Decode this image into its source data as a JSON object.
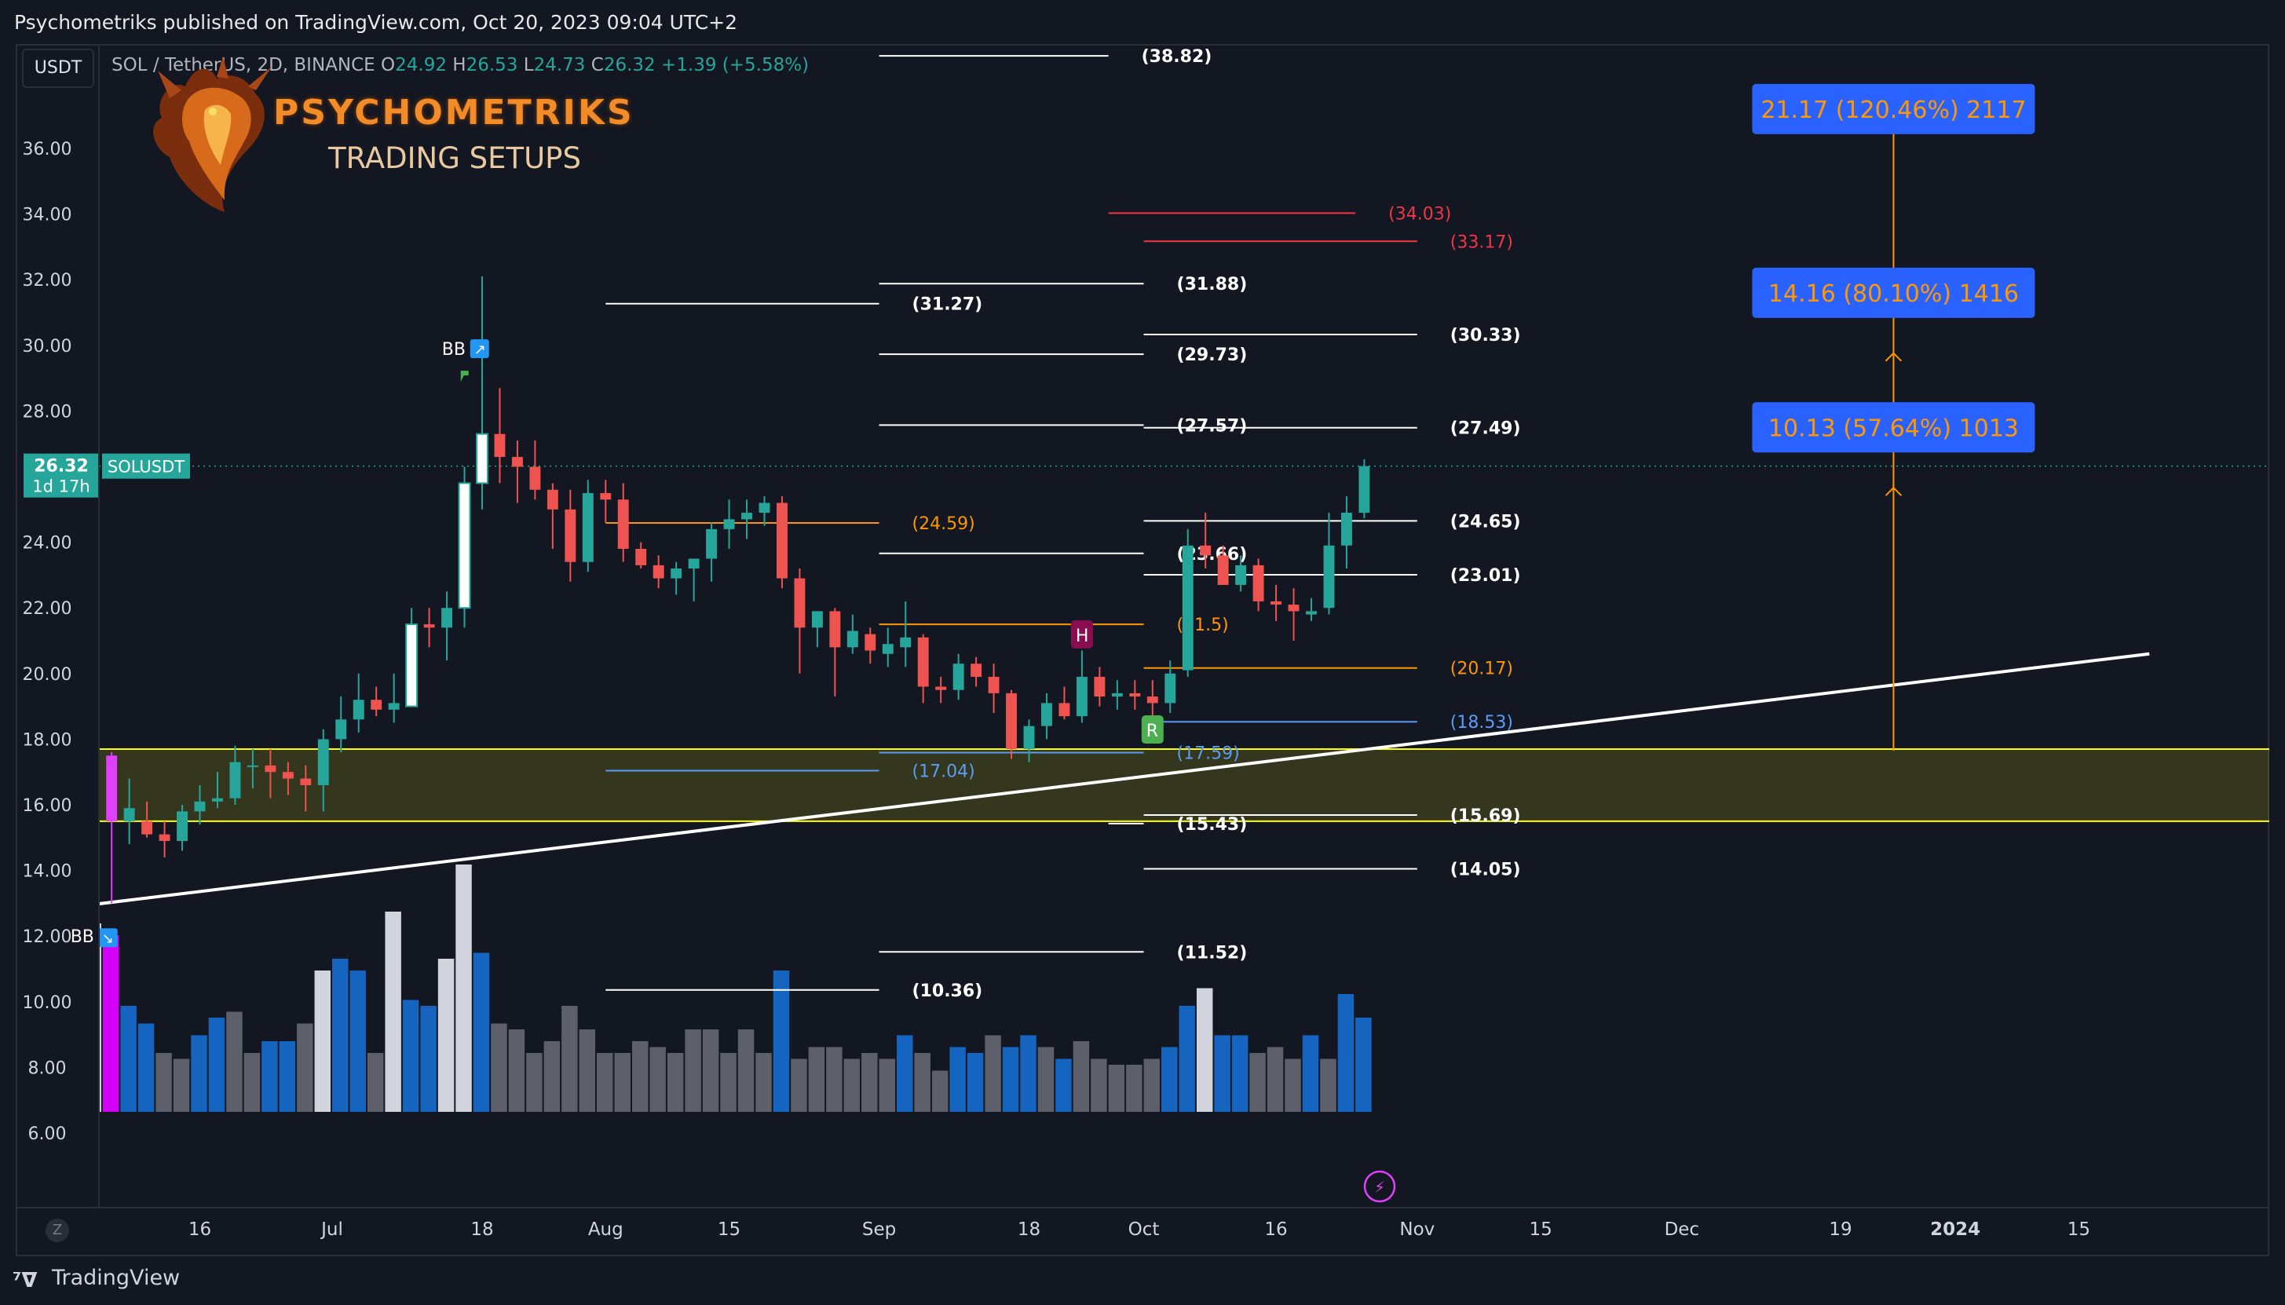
{
  "header": {
    "published_text": "Psychometriks published on TradingView.com, Oct 20, 2023 09:04 UTC+2"
  },
  "footer": {
    "brand": "TradingView",
    "brand_icon": "tradingview-logo-icon",
    "z_button": "Z"
  },
  "toolbar": {
    "currency_button": "USDT"
  },
  "legend": {
    "symbol": "SOL / TetherUS, 2D, BINANCE",
    "open_label": "O",
    "open": "24.92",
    "high_label": "H",
    "high": "26.53",
    "low_label": "L",
    "low": "24.73",
    "close_label": "C",
    "close": "26.32",
    "change": "+1.39 (+5.58%)"
  },
  "branding": {
    "title": "PSYCHOMETRIKS",
    "subtitle": "TRADING SETUPS",
    "logo_icon": "dragon-logo-icon"
  },
  "price_tag": {
    "price": "26.32",
    "countdown": "1d 17h",
    "symbol": "SOLUSDT"
  },
  "colors": {
    "background": "#131722",
    "up": "#26a69a",
    "down": "#ef5350",
    "zone": "#ffff00",
    "target": "#2962ff",
    "target_text": "#ff9800",
    "volume_up": "#1565c0",
    "volume_down": "#5d606b",
    "volume_high": "#d1d4dc"
  },
  "chart_data": {
    "type": "candlestick",
    "timeframe": "2D",
    "ylim": [
      6,
      38.5
    ],
    "yticks": [
      "36.00",
      "34.00",
      "32.00",
      "30.00",
      "28.00",
      "26.00",
      "24.00",
      "22.00",
      "20.00",
      "18.00",
      "16.00",
      "14.00",
      "12.00",
      "10.00",
      "8.00",
      "6.00"
    ],
    "xticks": [
      "16",
      "Jul",
      "18",
      "Aug",
      "15",
      "Sep",
      "18",
      "Oct",
      "16",
      "Nov",
      "15",
      "Dec",
      "19",
      "2024",
      "15"
    ],
    "candles": [
      {
        "d": "2023-06-04",
        "o": 19.3,
        "h": 19.8,
        "l": 13.0,
        "c": 17.5
      },
      {
        "d": "2023-06-06",
        "o": 17.5,
        "h": 17.6,
        "l": 13.0,
        "c": 15.5
      },
      {
        "d": "2023-06-08",
        "o": 15.5,
        "h": 16.8,
        "l": 14.8,
        "c": 15.9
      },
      {
        "d": "2023-06-10",
        "o": 15.5,
        "h": 16.1,
        "l": 15.0,
        "c": 15.1
      },
      {
        "d": "2023-06-12",
        "o": 15.1,
        "h": 15.5,
        "l": 14.4,
        "c": 14.9
      },
      {
        "d": "2023-06-14",
        "o": 14.9,
        "h": 16.0,
        "l": 14.6,
        "c": 15.8
      },
      {
        "d": "2023-06-16",
        "o": 15.8,
        "h": 16.6,
        "l": 15.4,
        "c": 16.1
      },
      {
        "d": "2023-06-18",
        "o": 16.1,
        "h": 17.0,
        "l": 15.9,
        "c": 16.2
      },
      {
        "d": "2023-06-20",
        "o": 16.2,
        "h": 17.8,
        "l": 16.0,
        "c": 17.3
      },
      {
        "d": "2023-06-22",
        "o": 17.2,
        "h": 17.7,
        "l": 16.5,
        "c": 17.2
      },
      {
        "d": "2023-06-24",
        "o": 17.2,
        "h": 17.7,
        "l": 16.2,
        "c": 17.0
      },
      {
        "d": "2023-06-26",
        "o": 17.0,
        "h": 17.3,
        "l": 16.3,
        "c": 16.8
      },
      {
        "d": "2023-06-28",
        "o": 16.8,
        "h": 17.2,
        "l": 15.8,
        "c": 16.6
      },
      {
        "d": "2023-06-30",
        "o": 16.6,
        "h": 18.3,
        "l": 15.8,
        "c": 18.0
      },
      {
        "d": "2023-07-02",
        "o": 18.0,
        "h": 19.3,
        "l": 17.6,
        "c": 18.6
      },
      {
        "d": "2023-07-04",
        "o": 18.6,
        "h": 20.0,
        "l": 18.2,
        "c": 19.2
      },
      {
        "d": "2023-07-06",
        "o": 19.2,
        "h": 19.6,
        "l": 18.7,
        "c": 18.9
      },
      {
        "d": "2023-07-08",
        "o": 18.9,
        "h": 20.0,
        "l": 18.5,
        "c": 19.1
      },
      {
        "d": "2023-07-10",
        "o": 19.0,
        "h": 22.0,
        "l": 19.0,
        "c": 21.5
      },
      {
        "d": "2023-07-12",
        "o": 21.5,
        "h": 22.0,
        "l": 20.8,
        "c": 21.4
      },
      {
        "d": "2023-07-14",
        "o": 21.4,
        "h": 22.5,
        "l": 20.4,
        "c": 22.0
      },
      {
        "d": "2023-07-16",
        "o": 22.0,
        "h": 26.3,
        "l": 21.4,
        "c": 25.8
      },
      {
        "d": "2023-07-18",
        "o": 25.8,
        "h": 32.1,
        "l": 25.0,
        "c": 27.3
      },
      {
        "d": "2023-07-20",
        "o": 27.3,
        "h": 28.7,
        "l": 25.8,
        "c": 26.6
      },
      {
        "d": "2023-07-22",
        "o": 26.6,
        "h": 27.1,
        "l": 25.2,
        "c": 26.3
      },
      {
        "d": "2023-07-24",
        "o": 26.3,
        "h": 27.1,
        "l": 25.3,
        "c": 25.6
      },
      {
        "d": "2023-07-26",
        "o": 25.6,
        "h": 25.8,
        "l": 23.8,
        "c": 25.0
      },
      {
        "d": "2023-07-28",
        "o": 25.0,
        "h": 25.6,
        "l": 22.8,
        "c": 23.4
      },
      {
        "d": "2023-07-30",
        "o": 23.4,
        "h": 25.9,
        "l": 23.1,
        "c": 25.5
      },
      {
        "d": "2023-08-01",
        "o": 25.5,
        "h": 25.9,
        "l": 24.6,
        "c": 25.3
      },
      {
        "d": "2023-08-03",
        "o": 25.3,
        "h": 25.8,
        "l": 23.4,
        "c": 23.8
      },
      {
        "d": "2023-08-05",
        "o": 23.8,
        "h": 24.0,
        "l": 23.2,
        "c": 23.3
      },
      {
        "d": "2023-08-07",
        "o": 23.3,
        "h": 23.6,
        "l": 22.6,
        "c": 22.9
      },
      {
        "d": "2023-08-09",
        "o": 22.9,
        "h": 23.4,
        "l": 22.4,
        "c": 23.2
      },
      {
        "d": "2023-08-11",
        "o": 23.2,
        "h": 23.5,
        "l": 22.2,
        "c": 23.5
      },
      {
        "d": "2023-08-13",
        "o": 23.5,
        "h": 24.6,
        "l": 22.8,
        "c": 24.4
      },
      {
        "d": "2023-08-15",
        "o": 24.4,
        "h": 25.3,
        "l": 23.8,
        "c": 24.7
      },
      {
        "d": "2023-08-17",
        "o": 24.7,
        "h": 25.3,
        "l": 24.1,
        "c": 24.9
      },
      {
        "d": "2023-08-19",
        "o": 24.9,
        "h": 25.4,
        "l": 24.5,
        "c": 25.2
      },
      {
        "d": "2023-08-21",
        "o": 25.2,
        "h": 25.4,
        "l": 22.6,
        "c": 22.9
      },
      {
        "d": "2023-08-23",
        "o": 22.9,
        "h": 23.2,
        "l": 20.0,
        "c": 21.4
      },
      {
        "d": "2023-08-25",
        "o": 21.4,
        "h": 21.9,
        "l": 20.8,
        "c": 21.9
      },
      {
        "d": "2023-08-27",
        "o": 21.9,
        "h": 22.0,
        "l": 19.3,
        "c": 20.8
      },
      {
        "d": "2023-08-29",
        "o": 20.8,
        "h": 21.8,
        "l": 20.6,
        "c": 21.3
      },
      {
        "d": "2023-08-31",
        "o": 21.2,
        "h": 21.4,
        "l": 20.3,
        "c": 20.7
      },
      {
        "d": "2023-09-02",
        "o": 20.6,
        "h": 21.4,
        "l": 20.2,
        "c": 20.9
      },
      {
        "d": "2023-09-04",
        "o": 20.8,
        "h": 22.2,
        "l": 20.2,
        "c": 21.1
      },
      {
        "d": "2023-09-06",
        "o": 21.1,
        "h": 21.2,
        "l": 19.1,
        "c": 19.6
      },
      {
        "d": "2023-09-08",
        "o": 19.6,
        "h": 19.9,
        "l": 19.1,
        "c": 19.5
      },
      {
        "d": "2023-09-10",
        "o": 19.5,
        "h": 20.6,
        "l": 19.2,
        "c": 20.3
      },
      {
        "d": "2023-09-12",
        "o": 20.3,
        "h": 20.5,
        "l": 19.6,
        "c": 19.9
      },
      {
        "d": "2023-09-14",
        "o": 19.9,
        "h": 20.3,
        "l": 18.8,
        "c": 19.4
      },
      {
        "d": "2023-09-16",
        "o": 19.4,
        "h": 19.5,
        "l": 17.4,
        "c": 17.7
      },
      {
        "d": "2023-09-18",
        "o": 17.7,
        "h": 18.6,
        "l": 17.3,
        "c": 18.4
      },
      {
        "d": "2023-09-20",
        "o": 18.4,
        "h": 19.4,
        "l": 18.0,
        "c": 19.1
      },
      {
        "d": "2023-09-22",
        "o": 19.1,
        "h": 19.6,
        "l": 18.6,
        "c": 18.7
      },
      {
        "d": "2023-09-24",
        "o": 18.7,
        "h": 20.7,
        "l": 18.5,
        "c": 19.9
      },
      {
        "d": "2023-09-26",
        "o": 19.9,
        "h": 20.2,
        "l": 19.0,
        "c": 19.3
      },
      {
        "d": "2023-09-28",
        "o": 19.3,
        "h": 19.8,
        "l": 18.9,
        "c": 19.4
      },
      {
        "d": "2023-09-30",
        "o": 19.4,
        "h": 19.8,
        "l": 18.9,
        "c": 19.3
      },
      {
        "d": "2023-10-02",
        "o": 19.3,
        "h": 19.8,
        "l": 18.7,
        "c": 19.1
      },
      {
        "d": "2023-10-04",
        "o": 19.1,
        "h": 20.4,
        "l": 18.8,
        "c": 20.0
      },
      {
        "d": "2023-10-06",
        "o": 20.1,
        "h": 24.4,
        "l": 19.9,
        "c": 23.9
      },
      {
        "d": "2023-10-08",
        "o": 23.9,
        "h": 24.9,
        "l": 23.2,
        "c": 23.6
      },
      {
        "d": "2023-10-10",
        "o": 23.6,
        "h": 23.9,
        "l": 22.7,
        "c": 22.7
      },
      {
        "d": "2023-10-12",
        "o": 22.7,
        "h": 23.6,
        "l": 22.5,
        "c": 23.3
      },
      {
        "d": "2023-10-14",
        "o": 23.3,
        "h": 23.5,
        "l": 21.9,
        "c": 22.2
      },
      {
        "d": "2023-10-16",
        "o": 22.2,
        "h": 22.7,
        "l": 21.6,
        "c": 22.1
      },
      {
        "d": "2023-10-18",
        "o": 22.1,
        "h": 22.6,
        "l": 21.0,
        "c": 21.9
      },
      {
        "d": "2023-10-20",
        "o": 21.8,
        "h": 22.3,
        "l": 21.6,
        "c": 21.9
      },
      {
        "d": "2023-10-22",
        "o": 22.0,
        "h": 24.9,
        "l": 21.8,
        "c": 23.9
      },
      {
        "d": "2023-10-24",
        "o": 23.9,
        "h": 25.4,
        "l": 23.2,
        "c": 24.9
      },
      {
        "d": "2023-10-26",
        "o": 24.9,
        "h": 26.53,
        "l": 24.73,
        "c": 26.32
      }
    ],
    "volume_levels": [
      3.2,
      3.0,
      1.8,
      1.5,
      1.0,
      0.9,
      1.3,
      1.6,
      1.7,
      1.0,
      1.2,
      1.2,
      1.5,
      2.4,
      2.6,
      2.4,
      1.0,
      3.4,
      1.9,
      1.8,
      2.6,
      4.2,
      2.7,
      1.5,
      1.4,
      1.0,
      1.2,
      1.8,
      1.4,
      1.0,
      1.0,
      1.2,
      1.1,
      1.0,
      1.4,
      1.4,
      1.0,
      1.4,
      1.0,
      2.4,
      0.9,
      1.1,
      1.1,
      0.9,
      1.0,
      0.9,
      1.3,
      1.0,
      0.7,
      1.1,
      1.0,
      1.3,
      1.1,
      1.3,
      1.1,
      0.9,
      1.2,
      0.9,
      0.8,
      0.8,
      0.9,
      1.1,
      1.8,
      2.1,
      1.3,
      1.3,
      1.0,
      1.1,
      0.9,
      1.3,
      0.9,
      2.0,
      1.6,
      0.6
    ],
    "volume_kind": [
      "hi",
      "m",
      "u",
      "u",
      "d",
      "d",
      "u",
      "u",
      "d",
      "d",
      "u",
      "u",
      "d",
      "hi",
      "u",
      "u",
      "d",
      "hi",
      "u",
      "u",
      "hi",
      "hi",
      "u",
      "d",
      "d",
      "d",
      "d",
      "d",
      "d",
      "d",
      "d",
      "d",
      "d",
      "d",
      "d",
      "d",
      "d",
      "d",
      "d",
      "u",
      "d",
      "d",
      "d",
      "d",
      "d",
      "d",
      "u",
      "d",
      "d",
      "u",
      "u",
      "d",
      "u",
      "u",
      "d",
      "u",
      "d",
      "d",
      "d",
      "d",
      "d",
      "u",
      "u",
      "hi",
      "u",
      "u",
      "d",
      "d",
      "d",
      "u",
      "d",
      "u",
      "u",
      "d"
    ],
    "zone": {
      "top": 17.7,
      "bottom": 15.5
    },
    "trendline": {
      "from": {
        "d": "2023-06-02",
        "p": 12.9
      },
      "to": {
        "d": "2024-01-23",
        "p": 20.6
      }
    },
    "fib_levels": [
      {
        "x1": "2023-09-01",
        "x2": "2023-09-27",
        "p": 38.82,
        "label": "(38.82)",
        "color": "white"
      },
      {
        "x1": "2023-09-27",
        "x2": "2023-10-25",
        "p": 34.03,
        "label": "(34.03)",
        "color": "red"
      },
      {
        "x1": "2023-10-01",
        "x2": "2023-11-01",
        "p": 33.17,
        "label": "(33.17)",
        "color": "red"
      },
      {
        "x1": "2023-08-01",
        "x2": "2023-09-01",
        "p": 31.27,
        "label": "(31.27)",
        "color": "white"
      },
      {
        "x1": "2023-09-01",
        "x2": "2023-10-01",
        "p": 31.88,
        "label": "(31.88)",
        "color": "white"
      },
      {
        "x1": "2023-10-01",
        "x2": "2023-11-01",
        "p": 30.33,
        "label": "(30.33)",
        "color": "white"
      },
      {
        "x1": "2023-09-01",
        "x2": "2023-10-01",
        "p": 29.73,
        "label": "(29.73)",
        "color": "white"
      },
      {
        "x1": "2023-09-01",
        "x2": "2023-10-01",
        "p": 27.57,
        "label": "(27.57)",
        "color": "white"
      },
      {
        "x1": "2023-10-01",
        "x2": "2023-11-01",
        "p": 27.49,
        "label": "(27.49)",
        "color": "white"
      },
      {
        "x1": "2023-08-01",
        "x2": "2023-09-01",
        "p": 24.59,
        "label": "(24.59)",
        "color": "orange"
      },
      {
        "x1": "2023-10-01",
        "x2": "2023-11-01",
        "p": 24.65,
        "label": "(24.65)",
        "color": "white"
      },
      {
        "x1": "2023-09-01",
        "x2": "2023-10-01",
        "p": 23.66,
        "label": "(23.66)",
        "color": "white"
      },
      {
        "x1": "2023-10-01",
        "x2": "2023-11-01",
        "p": 23.01,
        "label": "(23.01)",
        "color": "white"
      },
      {
        "x1": "2023-09-01",
        "x2": "2023-10-01",
        "p": 21.5,
        "label": "(21.5)",
        "color": "orange"
      },
      {
        "x1": "2023-10-01",
        "x2": "2023-11-01",
        "p": 20.17,
        "label": "(20.17)",
        "color": "orange"
      },
      {
        "x1": "2023-10-01",
        "x2": "2023-11-01",
        "p": 18.53,
        "label": "(18.53)",
        "color": "blue"
      },
      {
        "x1": "2023-09-01",
        "x2": "2023-10-01",
        "p": 17.59,
        "label": "(17.59)",
        "color": "blue"
      },
      {
        "x1": "2023-08-01",
        "x2": "2023-09-01",
        "p": 17.04,
        "label": "(17.04)",
        "color": "blue"
      },
      {
        "x1": "2023-10-01",
        "x2": "2023-11-01",
        "p": 15.69,
        "label": "(15.69)",
        "color": "white"
      },
      {
        "x1": "2023-09-27",
        "x2": "2023-10-01",
        "p": 15.43,
        "label": "(15.43)",
        "color": "white"
      },
      {
        "x1": "2023-10-01",
        "x2": "2023-11-01",
        "p": 14.05,
        "label": "(14.05)",
        "color": "white"
      },
      {
        "x1": "2023-09-01",
        "x2": "2023-10-01",
        "p": 11.52,
        "label": "(11.52)",
        "color": "white"
      },
      {
        "x1": "2023-08-01",
        "x2": "2023-09-01",
        "p": 10.36,
        "label": "(10.36)",
        "color": "white"
      }
    ],
    "targets": [
      {
        "text": "21.17 (120.46%) 2117",
        "p": 37.2
      },
      {
        "text": "14.16 (80.10%) 1416",
        "p": 31.6
      },
      {
        "text": "10.13 (57.64%) 1013",
        "p": 27.5
      }
    ],
    "target_line": {
      "d": "2023-12-25",
      "from": 17.65,
      "to": 36.6
    },
    "markers": [
      {
        "text": "BB",
        "d": "2023-07-17",
        "p": 29.8,
        "kind": "bb-up"
      },
      {
        "text": "BB",
        "d": "2023-06-04",
        "p": 12.0,
        "kind": "bb-down"
      },
      {
        "text": "H",
        "d": "2023-09-24",
        "p": 21.1,
        "kind": "h"
      },
      {
        "text": "R",
        "d": "2023-10-02",
        "p": 18.2,
        "kind": "r"
      }
    ]
  }
}
